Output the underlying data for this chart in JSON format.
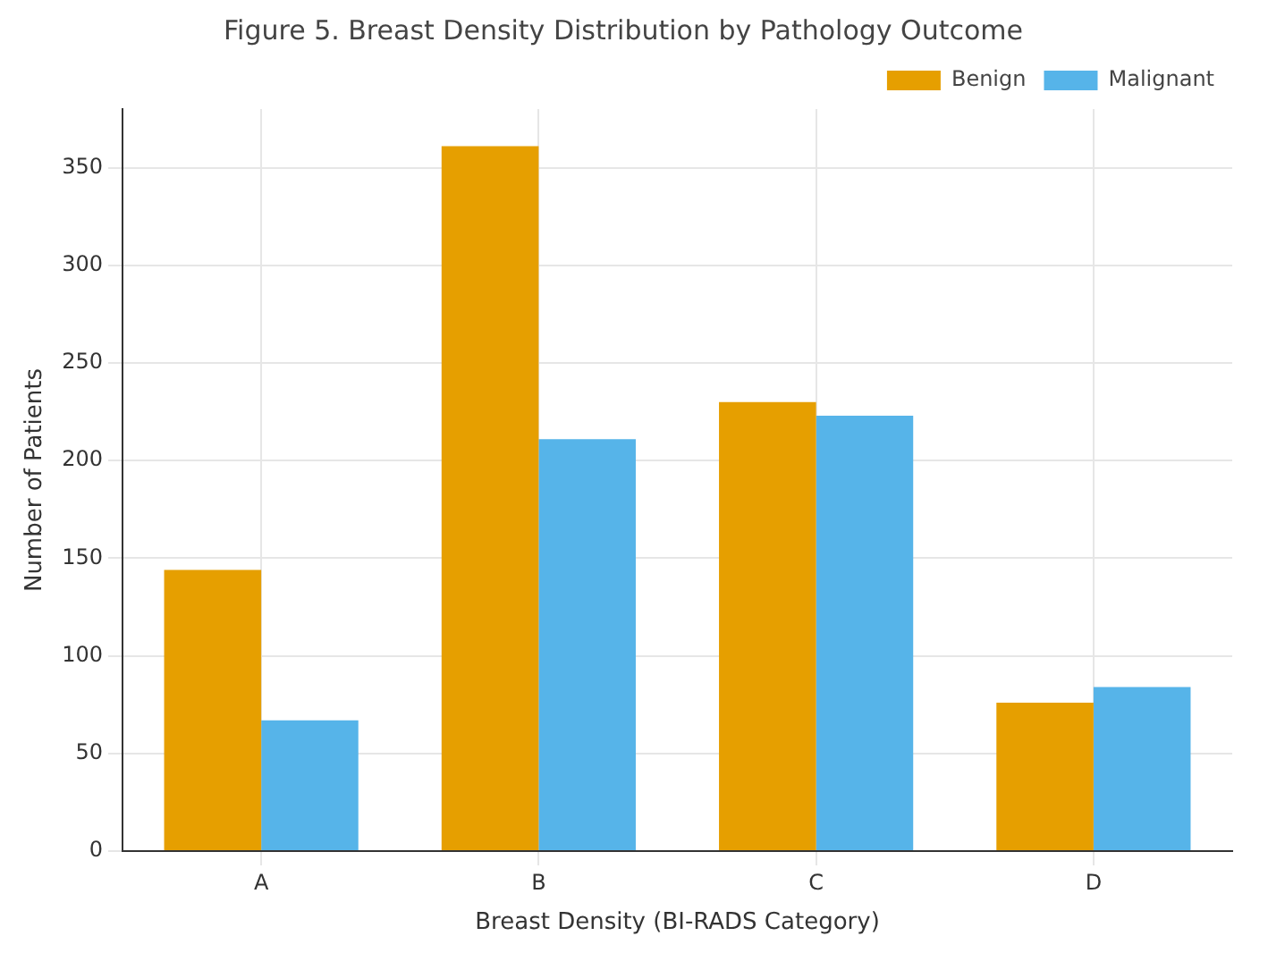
{
  "chart_data": {
    "type": "bar",
    "title": "Figure 5. Breast Density Distribution by Pathology Outcome",
    "xlabel": "Breast Density (BI-RADS Category)",
    "ylabel": "Number of Patients",
    "categories": [
      "A",
      "B",
      "C",
      "D"
    ],
    "series": [
      {
        "name": "Benign",
        "color": "#e69f00",
        "values": [
          144,
          361,
          230,
          76
        ]
      },
      {
        "name": "Malignant",
        "color": "#56b4e9",
        "values": [
          67,
          211,
          223,
          84
        ]
      }
    ],
    "ylim": [
      0,
      380
    ],
    "yticks": [
      0,
      50,
      100,
      150,
      200,
      250,
      300,
      350
    ],
    "grid": true,
    "legend": "top right"
  }
}
